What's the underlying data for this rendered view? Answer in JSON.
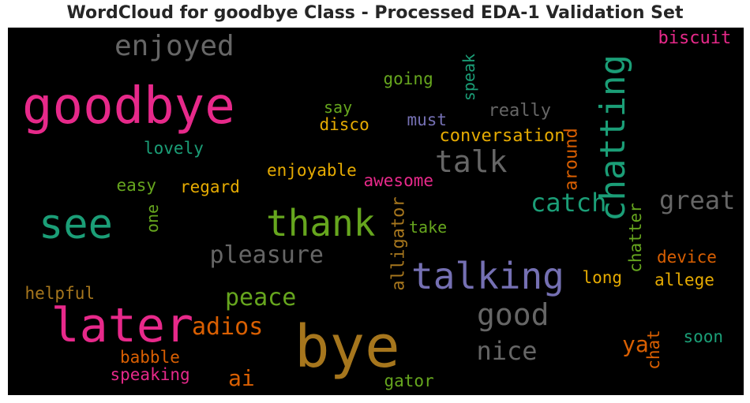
{
  "chart_data": {
    "type": "wordcloud",
    "title": "WordCloud for goodbye Class - Processed EDA-1 Validation Set",
    "background": "#000000",
    "colormap": "Dark2",
    "words": [
      {
        "text": "bye",
        "color": "#a6761d",
        "orientation": "horizontal"
      },
      {
        "text": "goodbye",
        "color": "#e7298a",
        "orientation": "horizontal"
      },
      {
        "text": "later",
        "color": "#e7298a",
        "orientation": "horizontal"
      },
      {
        "text": "see",
        "color": "#1b9e77",
        "orientation": "horizontal"
      },
      {
        "text": "thank",
        "color": "#66a61e",
        "orientation": "horizontal"
      },
      {
        "text": "talking",
        "color": "#7570b3",
        "orientation": "horizontal"
      },
      {
        "text": "chatting",
        "color": "#1b9e77",
        "orientation": "vertical"
      },
      {
        "text": "enjoyed",
        "color": "#666666",
        "orientation": "horizontal"
      },
      {
        "text": "talk",
        "color": "#666666",
        "orientation": "horizontal"
      },
      {
        "text": "good",
        "color": "#666666",
        "orientation": "horizontal"
      },
      {
        "text": "great",
        "color": "#666666",
        "orientation": "horizontal"
      },
      {
        "text": "pleasure",
        "color": "#666666",
        "orientation": "horizontal"
      },
      {
        "text": "catch",
        "color": "#1b9e77",
        "orientation": "horizontal"
      },
      {
        "text": "nice",
        "color": "#666666",
        "orientation": "horizontal"
      },
      {
        "text": "adios",
        "color": "#d95f02",
        "orientation": "horizontal"
      },
      {
        "text": "peace",
        "color": "#66a61e",
        "orientation": "horizontal"
      },
      {
        "text": "ai",
        "color": "#d95f02",
        "orientation": "horizontal"
      },
      {
        "text": "ya",
        "color": "#d95f02",
        "orientation": "horizontal"
      },
      {
        "text": "conversation",
        "color": "#e6ab02",
        "orientation": "horizontal"
      },
      {
        "text": "biscuit",
        "color": "#e7298a",
        "orientation": "horizontal"
      },
      {
        "text": "going",
        "color": "#66a61e",
        "orientation": "horizontal"
      },
      {
        "text": "speak",
        "color": "#1b9e77",
        "orientation": "vertical"
      },
      {
        "text": "really",
        "color": "#666666",
        "orientation": "horizontal"
      },
      {
        "text": "say",
        "color": "#66a61e",
        "orientation": "horizontal"
      },
      {
        "text": "must",
        "color": "#7570b3",
        "orientation": "horizontal"
      },
      {
        "text": "disco",
        "color": "#e6ab02",
        "orientation": "horizontal"
      },
      {
        "text": "around",
        "color": "#d95f02",
        "orientation": "vertical"
      },
      {
        "text": "lovely",
        "color": "#1b9e77",
        "orientation": "horizontal"
      },
      {
        "text": "enjoyable",
        "color": "#e6ab02",
        "orientation": "horizontal"
      },
      {
        "text": "awesome",
        "color": "#e7298a",
        "orientation": "horizontal"
      },
      {
        "text": "easy",
        "color": "#66a61e",
        "orientation": "horizontal"
      },
      {
        "text": "regard",
        "color": "#e6ab02",
        "orientation": "horizontal"
      },
      {
        "text": "one",
        "color": "#66a61e",
        "orientation": "vertical"
      },
      {
        "text": "alligator",
        "color": "#a6761d",
        "orientation": "vertical"
      },
      {
        "text": "take",
        "color": "#66a61e",
        "orientation": "horizontal"
      },
      {
        "text": "chatter",
        "color": "#66a61e",
        "orientation": "vertical"
      },
      {
        "text": "device",
        "color": "#d95f02",
        "orientation": "horizontal"
      },
      {
        "text": "allege",
        "color": "#e6ab02",
        "orientation": "horizontal"
      },
      {
        "text": "long",
        "color": "#e6ab02",
        "orientation": "horizontal"
      },
      {
        "text": "helpful",
        "color": "#a6761d",
        "orientation": "horizontal"
      },
      {
        "text": "soon",
        "color": "#1b9e77",
        "orientation": "horizontal"
      },
      {
        "text": "chat",
        "color": "#d95f02",
        "orientation": "vertical"
      },
      {
        "text": "babble",
        "color": "#d95f02",
        "orientation": "horizontal"
      },
      {
        "text": "speaking",
        "color": "#e7298a",
        "orientation": "horizontal"
      },
      {
        "text": "gator",
        "color": "#66a61e",
        "orientation": "horizontal"
      }
    ]
  }
}
